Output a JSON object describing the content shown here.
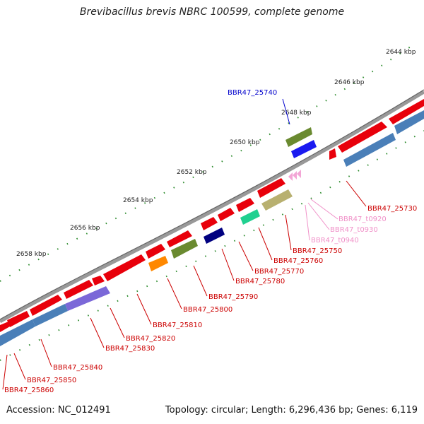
{
  "title": "Brevibacillus brevis NBRC 100599, complete genome",
  "footer": {
    "accession": "Accession: NC_012491",
    "stats": "Topology: circular; Length: 6,296,436 bp; Genes: 6,119"
  },
  "scale_labels": [
    "2644 kbp",
    "2646 kbp",
    "2648 kbp",
    "2650 kbp",
    "2652 kbp",
    "2654 kbp",
    "2656 kbp",
    "2658 kbp"
  ],
  "colors": {
    "cds": "#e8000b",
    "blue_feature": "#4a7fb8",
    "purple_feature": "#7b68d8",
    "trna": "#f3a6d6",
    "backbone": "#888888",
    "label_red": "#cc0000",
    "label_pink": "#f090c8",
    "label_blue": "#0000cc"
  },
  "gene_labels": [
    {
      "text": "BBR47_25740",
      "color": "#0000cc"
    },
    {
      "text": "BBR47_25730",
      "color": "#cc0000"
    },
    {
      "text": "BBR47_t0920",
      "color": "#f090c8"
    },
    {
      "text": "BBR47_t0930",
      "color": "#f090c8"
    },
    {
      "text": "BBR47_t0940",
      "color": "#f090c8"
    },
    {
      "text": "BBR47_25750",
      "color": "#cc0000"
    },
    {
      "text": "BBR47_25760",
      "color": "#cc0000"
    },
    {
      "text": "BBR47_25770",
      "color": "#cc0000"
    },
    {
      "text": "BBR47_25780",
      "color": "#cc0000"
    },
    {
      "text": "BBR47_25790",
      "color": "#cc0000"
    },
    {
      "text": "BBR47_25800",
      "color": "#cc0000"
    },
    {
      "text": "BBR47_25810",
      "color": "#cc0000"
    },
    {
      "text": "BBR47_25820",
      "color": "#cc0000"
    },
    {
      "text": "BBR47_25830",
      "color": "#cc0000"
    },
    {
      "text": "BBR47_25840",
      "color": "#cc0000"
    },
    {
      "text": "BBR47_25850",
      "color": "#cc0000"
    },
    {
      "text": "BBR47_25860",
      "color": "#cc0000"
    }
  ]
}
